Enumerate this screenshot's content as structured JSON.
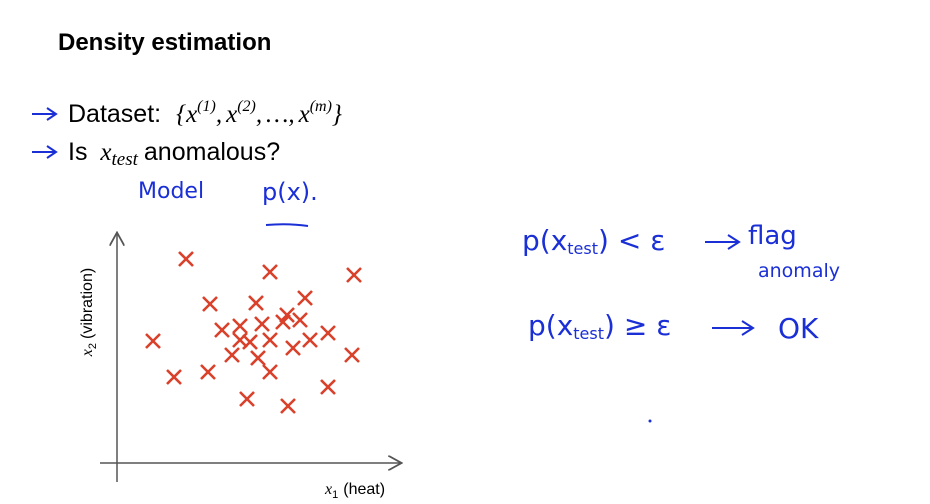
{
  "title": "Density estimation",
  "bullets": [
    {
      "label": "Dataset:",
      "set": {
        "open": "{",
        "close": "}",
        "separator": ",",
        "items": [
          {
            "base": "x",
            "sup": "(1)"
          },
          {
            "base": "x",
            "sup": "(2)"
          },
          {
            "base": "…"
          },
          {
            "base": "x",
            "sup": "(m)"
          }
        ]
      }
    },
    {
      "label": "Is",
      "symbol": "x",
      "subscript": "test",
      "rest": "anomalous?"
    }
  ],
  "notes": {
    "model": "Model",
    "px": "p(x)."
  },
  "rules": [
    {
      "condition": "p(x",
      "subscript": "test",
      "relation": ") < ε",
      "result": "flag",
      "result2": "anomaly"
    },
    {
      "condition": "p(x",
      "subscript": "test",
      "relation": ") ≥ ε",
      "result": "OK"
    }
  ],
  "plot": {
    "x_label": {
      "symbol": "x",
      "subscript": "1",
      "text": "(heat)"
    },
    "y_label": {
      "symbol": "x",
      "subscript": "2",
      "text": "(vibration)"
    }
  }
}
